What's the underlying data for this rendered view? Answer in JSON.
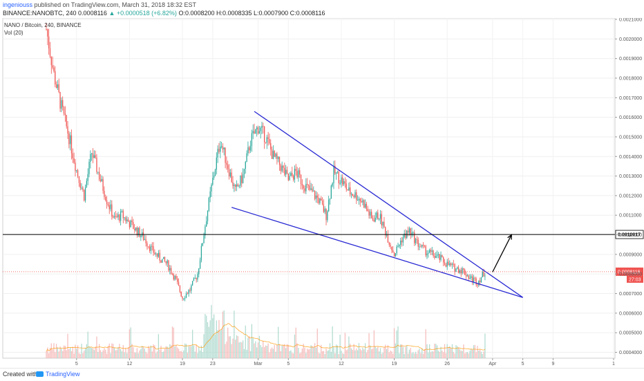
{
  "header": {
    "author": "ingeniouss",
    "published": "published on TradingView.com, March 31, 2018 18:32 EST",
    "symbol": "BINANCE:NANOBTC, 240",
    "change": "▲ +0.0000518 (+6.82%)",
    "ohlc": "O:0.0008200 H:0.0008335 L:0.0007900 C:0.0008116",
    "ohlc_prefix": "0.0008116"
  },
  "legend": {
    "pair": "NANO / Bitcoin, 240, BINANCE",
    "vol": "Vol (20)"
  },
  "footer": {
    "created_with": "Created with",
    "brand": "TradingView"
  },
  "colors": {
    "up": "#26a69a",
    "down": "#ef5350",
    "trendline": "#2a2ad4",
    "level": "#000000",
    "current_price": "#ef5350"
  },
  "chart_data": {
    "type": "candlestick",
    "interval": "240",
    "y_ticks": [
      "0.0004000",
      "0.0005000",
      "0.0006000",
      "0.0007000",
      "0.0008000",
      "0.0009000",
      "0.0010000",
      "0.0011000",
      "0.0012000",
      "0.0013000",
      "0.0014000",
      "0.0015000",
      "0.0016000",
      "0.0017000",
      "0.0018000",
      "0.0019000",
      "0.0020000",
      "0.0021000"
    ],
    "y_range": [
      0.00037,
      0.0021
    ],
    "x_ticks": [
      {
        "label": "5",
        "day": 5
      },
      {
        "label": "12",
        "day": 12
      },
      {
        "label": "19",
        "day": 19
      },
      {
        "label": "23",
        "day": 23
      },
      {
        "label": "Mar",
        "day": 29
      },
      {
        "label": "5",
        "day": 33
      },
      {
        "label": "12",
        "day": 40
      },
      {
        "label": "19",
        "day": 47
      },
      {
        "label": "26",
        "day": 54
      },
      {
        "label": "Apr",
        "day": 60
      },
      {
        "label": "5",
        "day": 64
      },
      {
        "label": "9",
        "day": 68
      },
      {
        "label": "1",
        "day": 76
      }
    ],
    "horizontal_level": {
      "value": 0.0010017,
      "label": "0.0010017"
    },
    "current_price": {
      "value": 0.0008116,
      "label": "0.0008116",
      "countdown": "27:03"
    },
    "anchor_closes": [
      [
        1,
        0.00205
      ],
      [
        2,
        0.00182
      ],
      [
        3,
        0.00165
      ],
      [
        4,
        0.0015
      ],
      [
        5,
        0.00133
      ],
      [
        6,
        0.0012
      ],
      [
        7,
        0.00142
      ],
      [
        8,
        0.0013
      ],
      [
        9,
        0.00118
      ],
      [
        10,
        0.00108
      ],
      [
        11,
        0.0011
      ],
      [
        12,
        0.00106
      ],
      [
        13,
        0.00102
      ],
      [
        14,
        0.00098
      ],
      [
        15,
        0.00092
      ],
      [
        16,
        0.00088
      ],
      [
        17,
        0.00085
      ],
      [
        18,
        0.00078
      ],
      [
        19,
        0.00068
      ],
      [
        20,
        0.00072
      ],
      [
        21,
        0.0008
      ],
      [
        22,
        0.00105
      ],
      [
        23,
        0.00128
      ],
      [
        24,
        0.00148
      ],
      [
        25,
        0.00135
      ],
      [
        26,
        0.00122
      ],
      [
        27,
        0.0013
      ],
      [
        28,
        0.00148
      ],
      [
        29,
        0.00155
      ],
      [
        30,
        0.0015
      ],
      [
        31,
        0.0014
      ],
      [
        32,
        0.00135
      ],
      [
        33,
        0.00128
      ],
      [
        34,
        0.00132
      ],
      [
        35,
        0.00126
      ],
      [
        36,
        0.00122
      ],
      [
        37,
        0.00118
      ],
      [
        38,
        0.0011
      ],
      [
        39,
        0.00132
      ],
      [
        40,
        0.00128
      ],
      [
        41,
        0.00122
      ],
      [
        42,
        0.0012
      ],
      [
        43,
        0.00116
      ],
      [
        44,
        0.00108
      ],
      [
        45,
        0.0011
      ],
      [
        46,
        0.001
      ],
      [
        47,
        0.0009
      ],
      [
        48,
        0.00098
      ],
      [
        49,
        0.00102
      ],
      [
        50,
        0.00096
      ],
      [
        51,
        0.00092
      ],
      [
        52,
        0.0009
      ],
      [
        53,
        0.00088
      ],
      [
        54,
        0.00085
      ],
      [
        55,
        0.00083
      ],
      [
        56,
        0.00082
      ],
      [
        57,
        0.00078
      ],
      [
        58,
        0.00076
      ],
      [
        59,
        0.00081
      ]
    ],
    "trendlines": [
      {
        "name": "upper",
        "from": [
          28.5,
          0.00163
        ],
        "to": [
          64,
          0.00068
        ]
      },
      {
        "name": "lower",
        "from": [
          25.5,
          0.00114
        ],
        "to": [
          64,
          0.00068
        ]
      }
    ],
    "projection_arrow": {
      "from": [
        60,
        0.00081
      ],
      "to": [
        62.5,
        0.001
      ]
    }
  }
}
